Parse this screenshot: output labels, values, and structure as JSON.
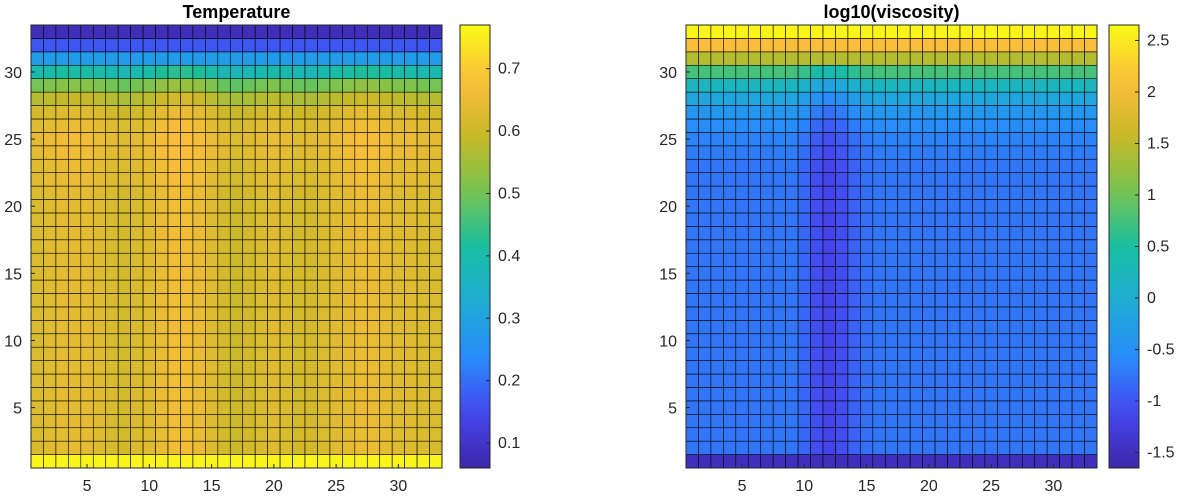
{
  "chart_data": [
    {
      "type": "heatmap",
      "title": "Temperature",
      "grid_size": 33,
      "x": {
        "lim": [
          0.5,
          33.5
        ],
        "ticks": [
          5,
          10,
          15,
          20,
          25,
          30
        ]
      },
      "y": {
        "lim": [
          0.5,
          33.5
        ],
        "ticks": [
          5,
          10,
          15,
          20,
          25,
          30
        ]
      },
      "grid": "cell edges drawn (black)",
      "colormap": "parula",
      "colorbar": {
        "position": "right",
        "lim": [
          0.06,
          0.77
        ],
        "ticks": [
          0.1,
          0.2,
          0.3,
          0.4,
          0.5,
          0.6,
          0.7
        ],
        "tick_labels": [
          "0.1",
          "0.2",
          "0.3",
          "0.4",
          "0.5",
          "0.6",
          "0.7"
        ]
      },
      "row_profile": {
        "y": [
          1,
          2,
          3,
          4,
          5,
          6,
          7,
          8,
          9,
          10,
          11,
          12,
          13,
          14,
          15,
          16,
          17,
          18,
          19,
          20,
          21,
          22,
          23,
          24,
          25,
          26,
          27,
          28,
          29,
          30,
          31,
          32,
          33
        ],
        "base": [
          0.76,
          0.63,
          0.63,
          0.63,
          0.63,
          0.63,
          0.63,
          0.63,
          0.63,
          0.63,
          0.63,
          0.63,
          0.63,
          0.63,
          0.63,
          0.63,
          0.63,
          0.63,
          0.63,
          0.63,
          0.63,
          0.64,
          0.64,
          0.65,
          0.65,
          0.64,
          0.62,
          0.58,
          0.51,
          0.4,
          0.28,
          0.17,
          0.08
        ]
      },
      "column_offsets": {
        "x": [
          1,
          2,
          3,
          4,
          5,
          6,
          7,
          8,
          9,
          10,
          11,
          12,
          13,
          14,
          15,
          16,
          17,
          18,
          19,
          20,
          21,
          22,
          23,
          24,
          25,
          26,
          27,
          28,
          29,
          30,
          31,
          32,
          33
        ],
        "offset": [
          -0.01,
          0.0,
          0.01,
          0.01,
          0.01,
          0.0,
          -0.01,
          -0.02,
          -0.01,
          0.0,
          0.02,
          0.03,
          0.03,
          0.02,
          0.0,
          -0.02,
          -0.03,
          -0.02,
          -0.01,
          0.0,
          -0.01,
          -0.02,
          -0.02,
          -0.01,
          0.0,
          0.01,
          0.02,
          0.02,
          0.01,
          0.0,
          0.0,
          -0.01,
          -0.01
        ]
      },
      "fixed_rows": [
        1,
        31,
        32,
        33
      ]
    },
    {
      "type": "heatmap",
      "title": "log10(viscosity)",
      "grid_size": 33,
      "x": {
        "lim": [
          0.5,
          33.5
        ],
        "ticks": [
          5,
          10,
          15,
          20,
          25,
          30
        ]
      },
      "y": {
        "lim": [
          0.5,
          33.5
        ],
        "ticks": [
          5,
          10,
          15,
          20,
          25,
          30
        ]
      },
      "grid": "cell edges drawn (black)",
      "colormap": "parula",
      "colorbar": {
        "position": "right",
        "lim": [
          -1.65,
          2.65
        ],
        "ticks": [
          -1.5,
          -1,
          -0.5,
          0,
          0.5,
          1,
          1.5,
          2,
          2.5
        ],
        "tick_labels": [
          "-1.5",
          "-1",
          "-0.5",
          "0",
          "0.5",
          "1",
          "1.5",
          "2",
          "2.5"
        ]
      },
      "row_profile": {
        "y": [
          1,
          2,
          3,
          4,
          5,
          6,
          7,
          8,
          9,
          10,
          11,
          12,
          13,
          14,
          15,
          16,
          17,
          18,
          19,
          20,
          21,
          22,
          23,
          24,
          25,
          26,
          27,
          28,
          29,
          30,
          31,
          32,
          33
        ],
        "base": [
          -1.5,
          -0.75,
          -0.75,
          -0.75,
          -0.75,
          -0.75,
          -0.75,
          -0.75,
          -0.75,
          -0.75,
          -0.75,
          -0.75,
          -0.75,
          -0.75,
          -0.75,
          -0.75,
          -0.75,
          -0.75,
          -0.75,
          -0.75,
          -0.75,
          -0.75,
          -0.75,
          -0.7,
          -0.65,
          -0.55,
          -0.4,
          -0.15,
          0.2,
          0.75,
          1.45,
          2.1,
          2.6
        ]
      },
      "column_offsets": {
        "x": [
          1,
          2,
          3,
          4,
          5,
          6,
          7,
          8,
          9,
          10,
          11,
          12,
          13,
          14,
          15,
          16,
          17,
          18,
          19,
          20,
          21,
          22,
          23,
          24,
          25,
          26,
          27,
          28,
          29,
          30,
          31,
          32,
          33
        ],
        "offset": [
          0.0,
          0.0,
          0.0,
          0.0,
          0.0,
          0.0,
          0.0,
          0.0,
          0.0,
          -0.1,
          -0.3,
          -0.4,
          -0.3,
          -0.15,
          -0.05,
          0.0,
          0.0,
          0.0,
          0.0,
          0.0,
          0.0,
          0.0,
          0.0,
          0.0,
          0.0,
          0.0,
          0.0,
          0.0,
          0.0,
          0.0,
          0.0,
          0.0,
          0.0
        ]
      },
      "fixed_rows": [
        1,
        31,
        32,
        33
      ]
    }
  ]
}
